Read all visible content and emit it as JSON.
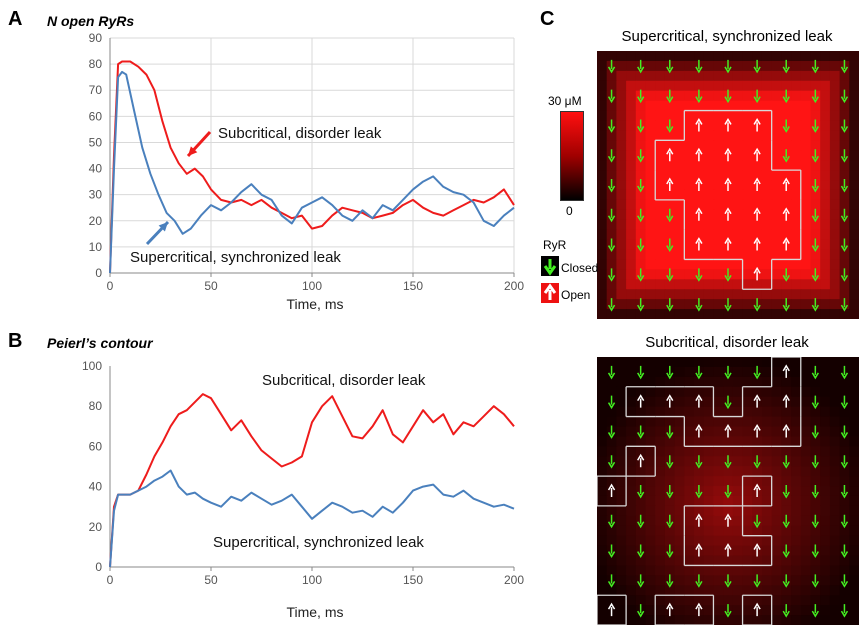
{
  "panels": {
    "a": {
      "letter": "A",
      "title": "N open RyRs"
    },
    "b": {
      "letter": "B",
      "title": "Peierl’s contour"
    },
    "c": {
      "letter": "C"
    }
  },
  "chart_data": [
    {
      "type": "line",
      "title": "N open RyRs",
      "xlabel": "Time, ms",
      "ylabel": "",
      "xlim": [
        0,
        200
      ],
      "ylim": [
        0,
        90
      ],
      "xticks": [
        "0",
        "50",
        "100",
        "150",
        "200"
      ],
      "yticks": [
        "0",
        "10",
        "20",
        "30",
        "40",
        "50",
        "60",
        "70",
        "80",
        "90"
      ],
      "grid": true,
      "annotations": [
        "Subcritical, disorder leak",
        "Supercritical, synchronized leak"
      ],
      "series": [
        {
          "name": "Subcritical, disorder leak",
          "color": "#ee1c1c",
          "x": [
            0,
            2,
            4,
            6,
            10,
            14,
            18,
            22,
            26,
            30,
            34,
            38,
            42,
            46,
            50,
            55,
            60,
            65,
            70,
            75,
            80,
            85,
            90,
            95,
            100,
            105,
            110,
            115,
            120,
            125,
            130,
            135,
            140,
            145,
            150,
            155,
            160,
            165,
            170,
            175,
            180,
            185,
            190,
            195,
            200
          ],
          "y": [
            0,
            45,
            80,
            81,
            81,
            79,
            76,
            70,
            58,
            48,
            42,
            38,
            40,
            37,
            32,
            28,
            27,
            28,
            26,
            28,
            25,
            23,
            21,
            22,
            17,
            18,
            22,
            25,
            24,
            23,
            21,
            22,
            23,
            26,
            28,
            25,
            23,
            22,
            24,
            26,
            28,
            27,
            29,
            32,
            26
          ]
        },
        {
          "name": "Supercritical, synchronized leak",
          "color": "#4a80bd",
          "x": [
            0,
            2,
            4,
            6,
            8,
            12,
            16,
            20,
            24,
            28,
            32,
            36,
            40,
            45,
            50,
            55,
            60,
            65,
            70,
            75,
            80,
            85,
            90,
            95,
            100,
            105,
            110,
            115,
            120,
            125,
            130,
            135,
            140,
            145,
            150,
            155,
            160,
            165,
            170,
            175,
            180,
            185,
            190,
            195,
            200
          ],
          "y": [
            0,
            40,
            75,
            77,
            76,
            62,
            48,
            38,
            30,
            23,
            20,
            15,
            17,
            22,
            26,
            24,
            27,
            31,
            34,
            30,
            28,
            22,
            19,
            25,
            27,
            29,
            26,
            22,
            20,
            24,
            21,
            26,
            24,
            28,
            32,
            35,
            37,
            33,
            31,
            30,
            27,
            20,
            18,
            22,
            25
          ]
        }
      ]
    },
    {
      "type": "line",
      "title": "Peierl’s contour",
      "xlabel": "Time, ms",
      "ylabel": "",
      "xlim": [
        0,
        200
      ],
      "ylim": [
        0,
        100
      ],
      "xticks": [
        "0",
        "50",
        "100",
        "150",
        "200"
      ],
      "yticks": [
        "0",
        "20",
        "40",
        "60",
        "80",
        "100"
      ],
      "grid": false,
      "annotations": [
        "Subcritical, disorder leak",
        "Supercritical, synchronized leak"
      ],
      "series": [
        {
          "name": "Subcritical, disorder leak",
          "color": "#ee1c1c",
          "x": [
            0,
            2,
            4,
            6,
            10,
            14,
            18,
            22,
            26,
            30,
            34,
            38,
            42,
            46,
            50,
            55,
            60,
            65,
            70,
            75,
            80,
            85,
            90,
            95,
            100,
            105,
            110,
            115,
            120,
            125,
            130,
            135,
            140,
            145,
            150,
            155,
            160,
            165,
            170,
            175,
            180,
            185,
            190,
            195,
            200
          ],
          "y": [
            0,
            30,
            36,
            36,
            36,
            38,
            46,
            55,
            62,
            70,
            76,
            78,
            82,
            86,
            84,
            76,
            68,
            73,
            65,
            58,
            54,
            50,
            52,
            55,
            72,
            80,
            85,
            75,
            65,
            64,
            70,
            78,
            66,
            62,
            70,
            78,
            72,
            76,
            66,
            72,
            70,
            75,
            80,
            76,
            70
          ]
        },
        {
          "name": "Supercritical, synchronized leak",
          "color": "#4a80bd",
          "x": [
            0,
            2,
            4,
            6,
            10,
            14,
            18,
            22,
            26,
            30,
            34,
            38,
            42,
            46,
            50,
            55,
            60,
            65,
            70,
            75,
            80,
            85,
            90,
            95,
            100,
            105,
            110,
            115,
            120,
            125,
            130,
            135,
            140,
            145,
            150,
            155,
            160,
            165,
            170,
            175,
            180,
            185,
            190,
            195,
            200
          ],
          "y": [
            0,
            28,
            36,
            36,
            36,
            38,
            40,
            43,
            45,
            48,
            40,
            36,
            37,
            34,
            32,
            30,
            35,
            33,
            37,
            34,
            31,
            33,
            36,
            30,
            24,
            28,
            32,
            30,
            27,
            28,
            25,
            30,
            27,
            32,
            38,
            40,
            41,
            36,
            35,
            38,
            34,
            32,
            30,
            31,
            29
          ]
        }
      ]
    }
  ],
  "heatmaps": [
    {
      "title": "Supercritical, synchronized leak",
      "open": [
        "000000000",
        "000000000",
        "000111000",
        "001111000",
        "001111100",
        "000111100",
        "000111100",
        "000001000",
        "000000000"
      ]
    },
    {
      "title": "Subcritical, disorder leak",
      "open": [
        "000000100",
        "011101100",
        "000111100",
        "010000000",
        "100001000",
        "000110000",
        "000111000",
        "000000000",
        "101101000"
      ]
    }
  ],
  "colorbar": {
    "max_label": "30 μM",
    "min_label": "0"
  },
  "legend": {
    "title": "RyR",
    "closed": "Closed",
    "open": "Open"
  },
  "colors": {
    "red": "#ee1c1c",
    "blue": "#4a80bd",
    "arrow_open": "#ffffff",
    "arrow_closed": "#44ee22"
  }
}
